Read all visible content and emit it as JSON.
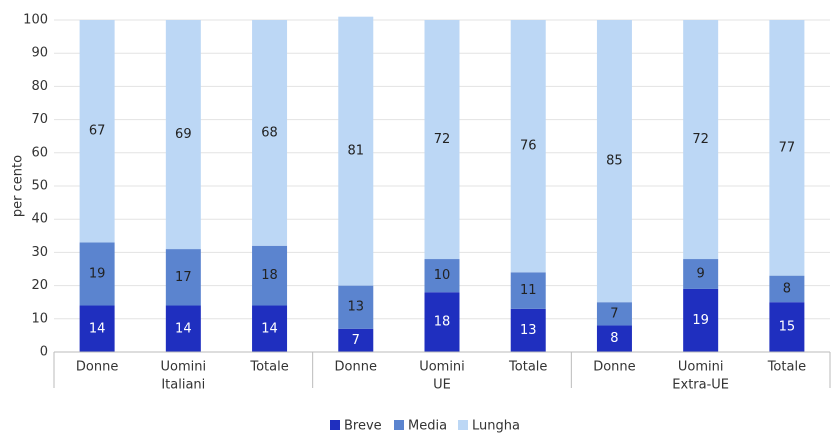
{
  "chart_data": {
    "type": "stacked_bar",
    "y_label": "per cento",
    "categories": [
      "Donne",
      "Uomini",
      "Totale",
      "Donne",
      "Uomini",
      "Totale",
      "Donne",
      "Uomini",
      "Totale"
    ],
    "groups": [
      "Italiani",
      "UE",
      "Extra-UE"
    ],
    "series": [
      {
        "name": "Breve",
        "color": "#1f2fbf",
        "values": [
          14,
          14,
          14,
          7,
          18,
          13,
          8,
          19,
          15
        ]
      },
      {
        "name": "Media",
        "color": "#5b84cf",
        "values": [
          19,
          17,
          18,
          13,
          10,
          11,
          7,
          9,
          8
        ]
      },
      {
        "name": "Lungha",
        "color": "#bcd7f5",
        "values": [
          67,
          69,
          68,
          81,
          72,
          76,
          85,
          72,
          77
        ]
      }
    ],
    "ylim": [
      0,
      100
    ],
    "yticks": [
      0,
      10,
      20,
      30,
      40,
      50,
      60,
      70,
      80,
      90,
      100
    ],
    "grid": true
  }
}
